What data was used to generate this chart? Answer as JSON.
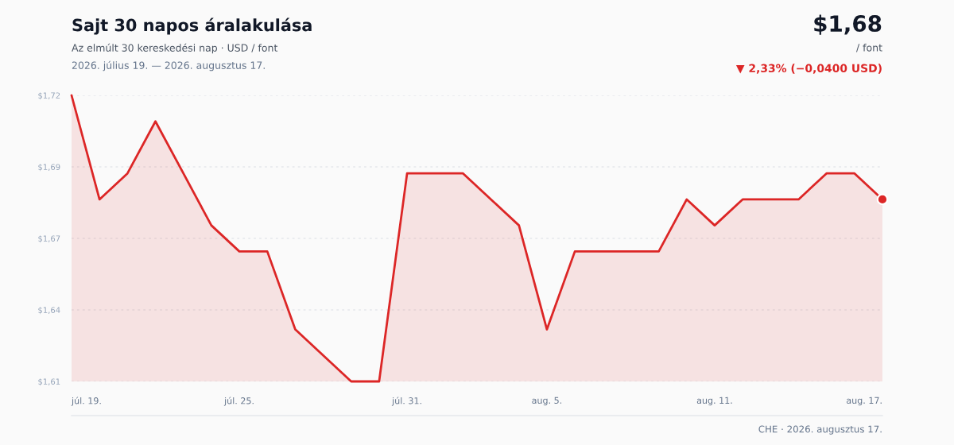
{
  "chart_data": {
    "type": "area",
    "title": "Sajt 30 napos áralakulása",
    "subtitle": "Az elmúlt 30 kereskedési nap · USD / font",
    "x": [
      "2026-07-19",
      "2026-07-20",
      "2026-07-21",
      "2026-07-22",
      "2026-07-23",
      "2026-07-24",
      "2026-07-25",
      "2026-07-26",
      "2026-07-27",
      "2026-07-28",
      "2026-07-29",
      "2026-07-30",
      "2026-07-31",
      "2026-08-01",
      "2026-08-02",
      "2026-08-03",
      "2026-08-04",
      "2026-08-05",
      "2026-08-06",
      "2026-08-07",
      "2026-08-08",
      "2026-08-09",
      "2026-08-10",
      "2026-08-11",
      "2026-08-12",
      "2026-08-13",
      "2026-08-14",
      "2026-08-15",
      "2026-08-16",
      "2026-08-17"
    ],
    "series": [
      {
        "color": "#dc2626",
        "values": [
          1.72,
          1.68,
          1.69,
          1.71,
          1.69,
          1.67,
          1.66,
          1.66,
          1.63,
          1.62,
          1.61,
          1.61,
          1.69,
          1.69,
          1.69,
          1.68,
          1.67,
          1.63,
          1.66,
          1.66,
          1.66,
          1.66,
          1.68,
          1.67,
          1.68,
          1.68,
          1.68,
          1.69,
          1.69,
          1.68
        ]
      }
    ],
    "xlim": [
      "2026-07-19",
      "2026-08-17"
    ],
    "xticks": [
      {
        "value": "2026-07-19",
        "label": "júl. 19."
      },
      {
        "value": "2026-07-25",
        "label": "júl. 25."
      },
      {
        "value": "2026-07-31",
        "label": "júl. 31."
      },
      {
        "value": "2026-08-05",
        "label": "aug. 5."
      },
      {
        "value": "2026-08-11",
        "label": "aug. 11."
      },
      {
        "value": "2026-08-17",
        "label": "aug. 17."
      }
    ],
    "ylim": [
      1.61,
      1.72
    ],
    "yticks": [
      {
        "value": 1.61,
        "label": "$1,61"
      },
      {
        "value": 1.6375,
        "label": "$1,64"
      },
      {
        "value": 1.665,
        "label": "$1,67"
      },
      {
        "value": 1.6925,
        "label": "$1,69"
      },
      {
        "value": 1.72,
        "label": "$1,72"
      }
    ],
    "grid": "y",
    "annotations": [
      "2026. július 19. — 2026. augusztus 17.",
      "$1,68",
      "/ font",
      "▼ 2,33% (−0,0400 USD)",
      "CHE · 2026. augusztus 17."
    ]
  }
}
